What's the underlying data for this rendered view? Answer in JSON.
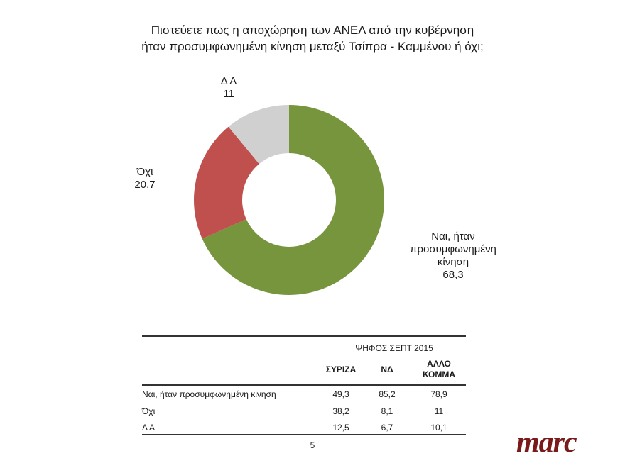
{
  "title": {
    "line1": "Πιστεύετε πως η αποχώρηση των ΑΝΕΛ από την κυβέρνηση",
    "line2": "ήταν προσυμφωνημένη κίνηση μεταξύ Τσίπρα - Καμμένου ή όχι;"
  },
  "chart_data": [
    {
      "type": "pie",
      "subtype": "donut",
      "title": "Πιστεύετε πως η αποχώρηση των ΑΝΕΛ από την κυβέρνηση ήταν προσυμφωνημένη κίνηση μεταξύ Τσίπρα - Καμμένου ή όχι;",
      "categories": [
        "Ναι, ήταν προσυμφωνημένη κίνηση",
        "Όχι",
        "Δ Α"
      ],
      "values": [
        68.3,
        20.7,
        11
      ],
      "colors": [
        "#77953d",
        "#c0504d",
        "#d0d0d0"
      ],
      "value_labels": [
        "68,3",
        "20,7",
        "11"
      ],
      "legend": "none (data labels outside slices)"
    },
    {
      "type": "table",
      "title": "ΨΗΦΟΣ ΣΕΠΤ 2015",
      "columns": [
        "ΣΥΡΙΖΑ",
        "ΝΔ",
        "ΑΛΛΟ ΚΟΜΜΑ"
      ],
      "rows": [
        {
          "label": "Ναι, ήταν προσυμφωνημένη κίνηση",
          "values": [
            49.3,
            85.2,
            78.9
          ]
        },
        {
          "label": "Όχι",
          "values": [
            38.2,
            8.1,
            11
          ]
        },
        {
          "label": "Δ Α",
          "values": [
            12.5,
            6.7,
            10.1
          ]
        }
      ]
    }
  ],
  "labels": {
    "yes_line1": "Ναι, ήταν",
    "yes_line2": "προσυμφωνημένη",
    "yes_line3": "κίνηση",
    "yes_value": "68,3",
    "no_name": "Όχι",
    "no_value": "20,7",
    "dk_name": "Δ Α",
    "dk_value": "11"
  },
  "table": {
    "group_header": "ΨΗΦΟΣ ΣΕΠΤ 2015",
    "col1": "ΣΥΡΙΖΑ",
    "col2": "ΝΔ",
    "col3_line1": "ΑΛΛΟ",
    "col3_line2": "ΚΟΜΜΑ",
    "rows": [
      {
        "label": "Ναι, ήταν προσυμφωνημένη κίνηση",
        "c1": "49,3",
        "c2": "85,2",
        "c3": "78,9"
      },
      {
        "label": "Όχι",
        "c1": "38,2",
        "c2": "8,1",
        "c3": "11"
      },
      {
        "label": "Δ Α",
        "c1": "12,5",
        "c2": "6,7",
        "c3": "10,1"
      }
    ]
  },
  "page_number": "5",
  "logo": "marc"
}
